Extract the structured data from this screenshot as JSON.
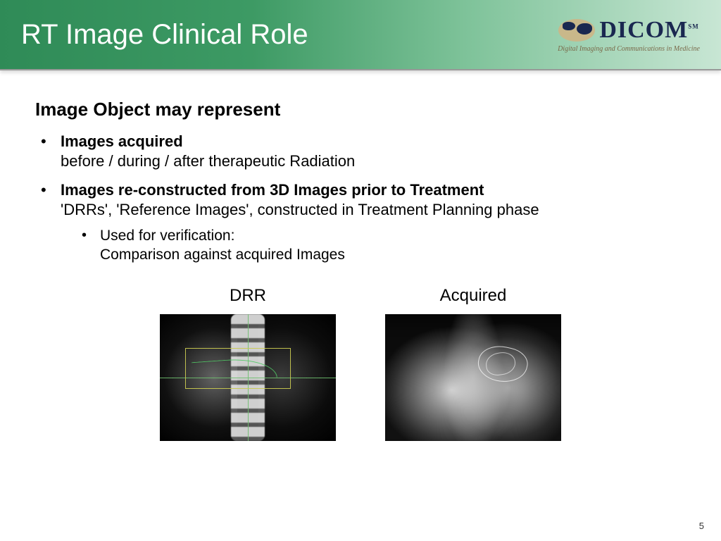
{
  "header": {
    "title": "RT Image Clinical Role",
    "logo_text": "DICOM",
    "logo_sm": "SM",
    "tagline": "Digital Imaging and Communications in Medicine"
  },
  "content": {
    "subtitle": "Image Object may represent",
    "bullets": [
      {
        "bold": "Images acquired",
        "rest": "before / during / after therapeutic Radiation"
      },
      {
        "bold": "Images re-constructed from 3D Images prior to Treatment",
        "rest": "'DRRs', 'Reference Images', constructed in Treatment Planning phase",
        "sub": {
          "line1": "Used for verification:",
          "line2": "Comparison against acquired Images"
        }
      }
    ],
    "images": {
      "left_label": "DRR",
      "right_label": "Acquired"
    }
  },
  "page_number": "5",
  "colors": {
    "header_gradient_start": "#2f8b57",
    "header_gradient_end": "#c8e6d4",
    "logo_navy": "#1a2850",
    "globe_fill": "#c9b88a",
    "grid_green": "#6ebe6e",
    "box_yellow": "#c8c850"
  }
}
